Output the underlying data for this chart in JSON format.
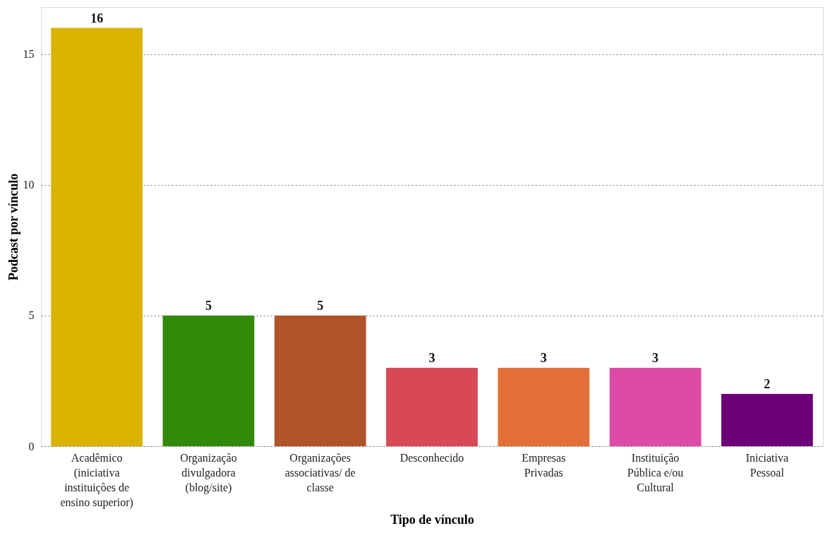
{
  "chart_data": {
    "type": "bar",
    "xlabel": "Tipo de vínculo",
    "ylabel": "Podcast por vínculo",
    "categories": [
      "Acadêmico (iniciativa instituições de ensino superior)",
      "Organização divulgadora (blog/site)",
      "Organizações associativas/ de classe",
      "Desconhecido",
      "Empresas Privadas",
      "Instituição Pública e/ou Cultural",
      "Iniciativa Pessoal"
    ],
    "values": [
      16,
      5,
      5,
      3,
      3,
      3,
      2
    ],
    "colors": [
      "#d9b300",
      "#338a0a",
      "#b0522a",
      "#d74a55",
      "#e36f3a",
      "#dd4aa8",
      "#6b0078"
    ],
    "ylim": [
      0,
      16.8
    ],
    "yticks": [
      0,
      5,
      10,
      15
    ],
    "grid": "y",
    "data_labels": true
  }
}
